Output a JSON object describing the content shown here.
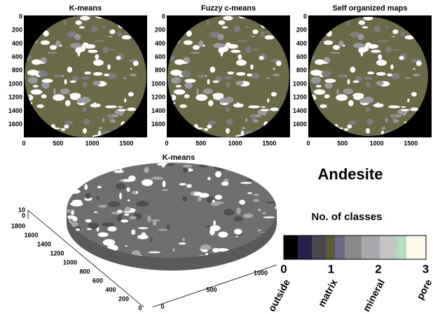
{
  "panels": [
    {
      "title": "K-means",
      "yticks": [
        "0",
        "200",
        "400",
        "600",
        "800",
        "1000",
        "1200",
        "1400",
        "1600"
      ],
      "xticks": [
        "0",
        "500",
        "1000",
        "1500"
      ]
    },
    {
      "title": "Fuzzy c-means",
      "yticks": [
        "0",
        "200",
        "400",
        "600",
        "800",
        "1000",
        "1200",
        "1400",
        "1600"
      ],
      "xticks": [
        "0",
        "500",
        "1000",
        "1500"
      ]
    },
    {
      "title": "Self organized maps",
      "yticks": [
        "0",
        "200",
        "400",
        "600",
        "800",
        "1000",
        "1200",
        "1400",
        "1600"
      ],
      "xticks": [
        "0",
        "500",
        "1000",
        "1500"
      ]
    }
  ],
  "panel3d": {
    "title": "K-means",
    "zticks": [
      "10",
      "0"
    ],
    "yticks": [
      "1800",
      "1600",
      "1400",
      "1200",
      "1000",
      "800",
      "600",
      "400",
      "200",
      "0"
    ],
    "xticks": [
      "0",
      "500",
      "1000"
    ]
  },
  "rock": "Andesite",
  "colorbar": {
    "title": "No. of classes",
    "ticks": [
      "0",
      "1",
      "2",
      "3"
    ],
    "labels": [
      "outside",
      "matrix",
      "mineral",
      "pore"
    ]
  }
}
